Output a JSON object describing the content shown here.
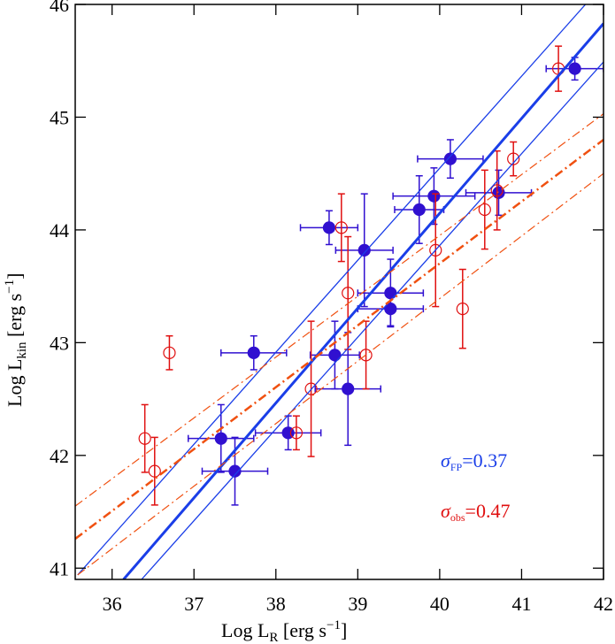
{
  "chart_data": {
    "type": "scatter",
    "xlim": [
      35.55,
      42
    ],
    "ylim": [
      40.9,
      46
    ],
    "xticks": [
      36,
      37,
      38,
      39,
      40,
      41,
      42
    ],
    "yticks": [
      41,
      42,
      43,
      44,
      45,
      46
    ],
    "x_label": {
      "parts": [
        "Log L",
        "R",
        " [erg s",
        "−1",
        "]"
      ]
    },
    "y_label": {
      "parts": [
        "Log L",
        "kin",
        " [erg s",
        "−1",
        "]"
      ]
    },
    "series": [
      {
        "style": "filled",
        "color": "#3010d0",
        "x": [
          41.65,
          40.13,
          39.93,
          39.75,
          40.72,
          38.65,
          39.08,
          39.4,
          39.4,
          37.73,
          38.72,
          38.88,
          38.15,
          37.33,
          37.5
        ],
        "values": [
          45.43,
          44.63,
          44.3,
          44.18,
          44.33,
          44.02,
          43.82,
          43.44,
          43.3,
          42.91,
          42.89,
          42.59,
          42.2,
          42.15,
          41.86
        ],
        "xerr": [
          0.35,
          0.4,
          0.5,
          0.3,
          0.4,
          0.35,
          0.35,
          0.4,
          0.4,
          0.4,
          0.3,
          0.4,
          0.4,
          0.4,
          0.4
        ],
        "yerr": [
          0.1,
          0.17,
          0.25,
          0.3,
          0.2,
          0.15,
          0.5,
          0.3,
          0.15,
          0.15,
          0.3,
          0.5,
          0.15,
          0.3,
          0.3
        ]
      },
      {
        "style": "open",
        "color": "#e01010",
        "x": [
          41.45,
          40.9,
          40.7,
          40.55,
          38.8,
          39.95,
          38.88,
          40.28,
          36.7,
          39.1,
          38.43,
          38.25,
          36.4,
          36.52
        ],
        "values": [
          45.43,
          44.63,
          44.35,
          44.18,
          44.02,
          43.82,
          43.44,
          43.3,
          42.91,
          42.89,
          42.59,
          42.2,
          42.15,
          41.86
        ],
        "yerr": [
          0.2,
          0.15,
          0.35,
          0.35,
          0.3,
          0.5,
          0.5,
          0.35,
          0.15,
          0.3,
          0.6,
          0.15,
          0.3,
          0.3
        ]
      },
      {
        "style": "line",
        "color": "#1a3ee8",
        "width": 3,
        "x": [
          36.14,
          42
        ],
        "values": [
          40.9,
          45.83
        ]
      },
      {
        "style": "line",
        "color": "#1a3ee8",
        "width": 1.3,
        "x": [
          35.58,
          41.78
        ],
        "values": [
          40.94,
          46
        ]
      },
      {
        "style": "line",
        "color": "#1a3ee8",
        "width": 1.3,
        "x": [
          36.36,
          42
        ],
        "values": [
          40.9,
          45.49
        ]
      },
      {
        "style": "dashdot",
        "color": "#f05010",
        "width": 2.5,
        "x": [
          35.55,
          42
        ],
        "values": [
          41.26,
          44.8
        ]
      },
      {
        "style": "dashdot",
        "color": "#f05010",
        "width": 1.2,
        "x": [
          35.55,
          42
        ],
        "values": [
          41.55,
          45.03
        ]
      },
      {
        "style": "dashdot",
        "color": "#f05010",
        "width": 1.2,
        "x": [
          35.58,
          42
        ],
        "values": [
          40.94,
          44.5
        ]
      }
    ],
    "annotations": [
      {
        "symbol": "σ",
        "subscript": "FP",
        "text": "=0.37",
        "color": "#1a3ee8"
      },
      {
        "symbol": "σ",
        "subscript": "obs",
        "text": "=0.47",
        "color": "#e01010"
      }
    ]
  }
}
